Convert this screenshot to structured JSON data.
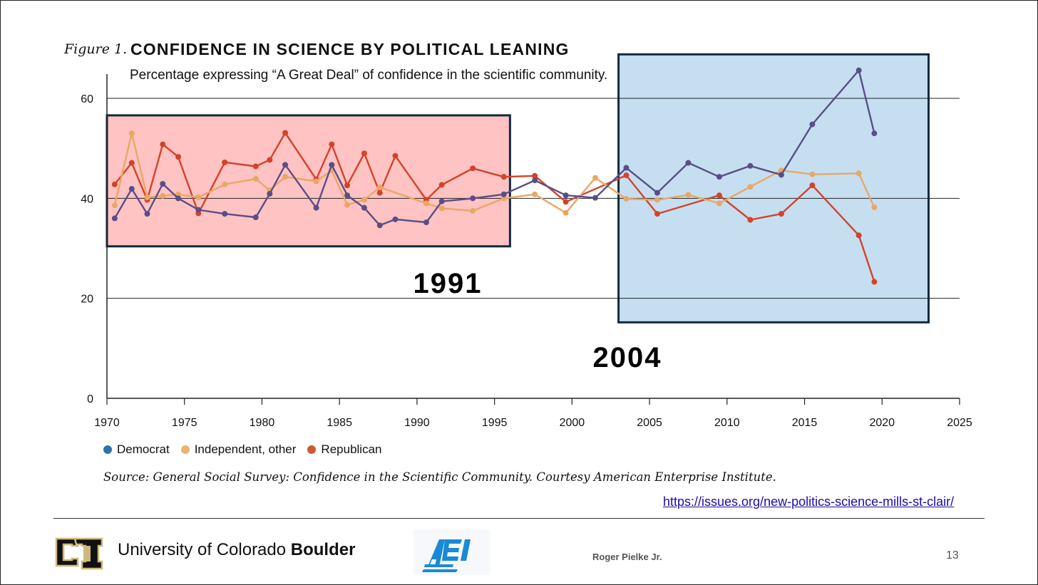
{
  "figure": {
    "label": "Figure 1.",
    "title": "CONFIDENCE IN SCIENCE BY POLITICAL LEANING",
    "subtitle": "Percentage expressing “A Great Deal” of confidence in the scientific community."
  },
  "chart_data": {
    "type": "line",
    "xlim": [
      1970,
      2025
    ],
    "ylim": [
      0,
      62
    ],
    "xticks": [
      1970,
      1975,
      1980,
      1985,
      1990,
      1995,
      2000,
      2005,
      2010,
      2015,
      2020,
      2025
    ],
    "yticks": [
      0,
      20,
      40,
      60
    ],
    "gridlines_y": [
      20,
      40,
      60
    ],
    "series": [
      {
        "name": "Republican",
        "color": "#d4422a",
        "points": [
          [
            1970.5,
            42.8
          ],
          [
            1971.6,
            47.1
          ],
          [
            1972.6,
            39.7
          ],
          [
            1973.6,
            50.8
          ],
          [
            1974.6,
            48.3
          ],
          [
            1975.9,
            37.0
          ],
          [
            1977.6,
            47.2
          ],
          [
            1979.6,
            46.4
          ],
          [
            1980.5,
            47.7
          ],
          [
            1981.5,
            53.1
          ],
          [
            1983.5,
            43.8
          ],
          [
            1984.5,
            50.8
          ],
          [
            1985.5,
            42.6
          ],
          [
            1986.6,
            49.0
          ],
          [
            1987.6,
            41.1
          ],
          [
            1988.6,
            48.5
          ],
          [
            1990.6,
            39.7
          ],
          [
            1991.6,
            42.7
          ],
          [
            1993.6,
            46.0
          ],
          [
            1995.6,
            44.3
          ],
          [
            1997.6,
            44.5
          ],
          [
            1999.6,
            39.3
          ],
          [
            2003.5,
            44.6
          ],
          [
            2005.5,
            36.9
          ],
          [
            2009.5,
            40.6
          ],
          [
            2011.5,
            35.7
          ],
          [
            2013.5,
            36.9
          ],
          [
            2015.5,
            42.6
          ],
          [
            2018.5,
            32.6
          ],
          [
            2019.5,
            23.3
          ]
        ]
      },
      {
        "name": "Independent, other",
        "color": "#e9a765",
        "points": [
          [
            1970.5,
            38.6
          ],
          [
            1971.6,
            53.0
          ],
          [
            1972.6,
            40.2
          ],
          [
            1973.6,
            40.5
          ],
          [
            1974.6,
            40.8
          ],
          [
            1975.9,
            40.2
          ],
          [
            1977.6,
            42.8
          ],
          [
            1979.6,
            43.9
          ],
          [
            1980.5,
            41.6
          ],
          [
            1981.5,
            44.3
          ],
          [
            1983.5,
            43.4
          ],
          [
            1984.5,
            45.6
          ],
          [
            1985.5,
            38.7
          ],
          [
            1986.6,
            39.7
          ],
          [
            1987.6,
            42.2
          ],
          [
            1990.6,
            39.0
          ],
          [
            1991.6,
            38.0
          ],
          [
            1993.6,
            37.5
          ],
          [
            1995.6,
            40.0
          ],
          [
            1997.6,
            40.8
          ],
          [
            1999.6,
            37.1
          ],
          [
            2001.5,
            44.1
          ],
          [
            2003.5,
            39.9
          ],
          [
            2005.5,
            39.7
          ],
          [
            2007.5,
            40.7
          ],
          [
            2009.5,
            39.0
          ],
          [
            2011.5,
            42.3
          ],
          [
            2013.5,
            45.6
          ],
          [
            2015.5,
            44.8
          ],
          [
            2018.5,
            45.0
          ],
          [
            2019.5,
            38.2
          ]
        ]
      },
      {
        "name": "Democrat",
        "color": "#5a4e86",
        "points": [
          [
            1970.5,
            36.0
          ],
          [
            1971.6,
            41.9
          ],
          [
            1972.6,
            36.9
          ],
          [
            1973.6,
            42.9
          ],
          [
            1974.6,
            40.0
          ],
          [
            1975.9,
            37.7
          ],
          [
            1977.6,
            36.9
          ],
          [
            1979.6,
            36.2
          ],
          [
            1980.5,
            40.9
          ],
          [
            1981.5,
            46.7
          ],
          [
            1983.5,
            38.1
          ],
          [
            1984.5,
            46.7
          ],
          [
            1985.5,
            40.6
          ],
          [
            1986.6,
            38.1
          ],
          [
            1987.6,
            34.6
          ],
          [
            1988.6,
            35.8
          ],
          [
            1990.6,
            35.2
          ],
          [
            1991.6,
            39.4
          ],
          [
            1993.6,
            40.0
          ],
          [
            1995.6,
            40.8
          ],
          [
            1997.6,
            43.6
          ],
          [
            1999.6,
            40.6
          ],
          [
            2001.5,
            40.1
          ],
          [
            2003.5,
            46.1
          ],
          [
            2005.5,
            41.1
          ],
          [
            2007.5,
            47.1
          ],
          [
            2009.5,
            44.3
          ],
          [
            2011.5,
            46.5
          ],
          [
            2013.5,
            44.7
          ],
          [
            2015.5,
            54.8
          ],
          [
            2018.5,
            65.6
          ],
          [
            2019.5,
            53.0
          ]
        ]
      }
    ],
    "legend": [
      {
        "name": "Democrat",
        "color": "#2f73a8"
      },
      {
        "name": "Independent, other",
        "color": "#e7b56f"
      },
      {
        "name": "Republican",
        "color": "#cc5a33"
      }
    ],
    "annotations": [
      {
        "label": "1991",
        "period": [
          1970,
          1996
        ],
        "fill": "#ffc3c3",
        "range_y": [
          30.4,
          56.6
        ]
      },
      {
        "label": "2004",
        "period": [
          2003,
          2023
        ],
        "fill": "#c5dff1",
        "range_y": [
          15.2,
          68.8
        ]
      }
    ],
    "legend_position": "bottom-left"
  },
  "source": "Source: General Social Survey: Confidence in the Scientific Community. Courtesy American Enterprise Institute.",
  "link": "https://issues.org/new-politics-science-mills-st-clair/",
  "footer": {
    "university_prefix": "University of Colorado ",
    "university_bold": "Boulder",
    "aei_logo_text": "AEI",
    "author": "Roger Pielke Jr.",
    "page": "13"
  },
  "colors": {
    "ink": "#111111",
    "rule": "#333333",
    "link": "#1a0dab",
    "box_border": "#102a40",
    "cu_gold": "#cfb87c",
    "aei_blue": "#1a8ad4"
  }
}
